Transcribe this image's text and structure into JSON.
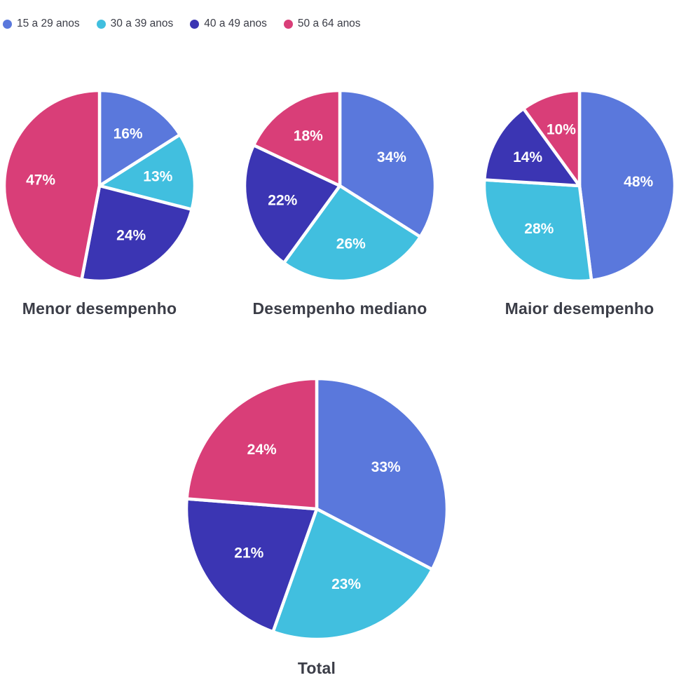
{
  "page": {
    "background": "#ffffff",
    "text_color": "#3b3d47"
  },
  "legend": {
    "items": [
      {
        "label": "15 a 29 anos",
        "color": "#5a78dc"
      },
      {
        "label": "30 a 39 anos",
        "color": "#41bfdf"
      },
      {
        "label": "40 a 49 anos",
        "color": "#3b35b3"
      },
      {
        "label": "50 a 64 anos",
        "color": "#d93e78"
      }
    ]
  },
  "chart_data": [
    {
      "type": "pie",
      "title": "Menor desempenho",
      "categories": [
        "15 a 29 anos",
        "30 a 39 anos",
        "40 a 49 anos",
        "50 a 64 anos"
      ],
      "values": [
        16,
        13,
        24,
        47
      ],
      "labels": [
        "16%",
        "13%",
        "24%",
        "47%"
      ],
      "colors": [
        "#5a78dc",
        "#41bfdf",
        "#3b35b3",
        "#d93e78"
      ],
      "unit": "%",
      "start_angle_deg": 0,
      "direction": "clockwise",
      "label_position": "inside",
      "label_color": "#ffffff",
      "legend_position": "top-left"
    },
    {
      "type": "pie",
      "title": "Desempenho mediano",
      "categories": [
        "15 a 29 anos",
        "30 a 39 anos",
        "40 a 49 anos",
        "50 a 64 anos"
      ],
      "values": [
        34,
        26,
        22,
        18
      ],
      "labels": [
        "34%",
        "26%",
        "22%",
        "18%"
      ],
      "colors": [
        "#5a78dc",
        "#41bfdf",
        "#3b35b3",
        "#d93e78"
      ],
      "unit": "%",
      "start_angle_deg": 0,
      "direction": "clockwise",
      "label_position": "inside",
      "label_color": "#ffffff",
      "legend_position": "top-left"
    },
    {
      "type": "pie",
      "title": "Maior desempenho",
      "categories": [
        "15 a 29 anos",
        "30 a 39 anos",
        "40 a 49 anos",
        "50 a 64 anos"
      ],
      "values": [
        48,
        28,
        14,
        10
      ],
      "labels": [
        "48%",
        "28%",
        "14%",
        "10%"
      ],
      "colors": [
        "#5a78dc",
        "#41bfdf",
        "#3b35b3",
        "#d93e78"
      ],
      "unit": "%",
      "start_angle_deg": 0,
      "direction": "clockwise",
      "label_position": "inside",
      "label_color": "#ffffff",
      "legend_position": "top-left"
    },
    {
      "type": "pie",
      "title": "Total",
      "categories": [
        "15 a 29 anos",
        "30 a 39 anos",
        "40 a 49 anos",
        "50 a 64 anos"
      ],
      "values": [
        33,
        23,
        21,
        24
      ],
      "labels": [
        "33%",
        "23%",
        "21%",
        "24%"
      ],
      "colors": [
        "#5a78dc",
        "#41bfdf",
        "#3b35b3",
        "#d93e78"
      ],
      "unit": "%",
      "start_angle_deg": 0,
      "direction": "clockwise",
      "label_position": "inside",
      "label_color": "#ffffff",
      "legend_position": "top-left"
    }
  ]
}
